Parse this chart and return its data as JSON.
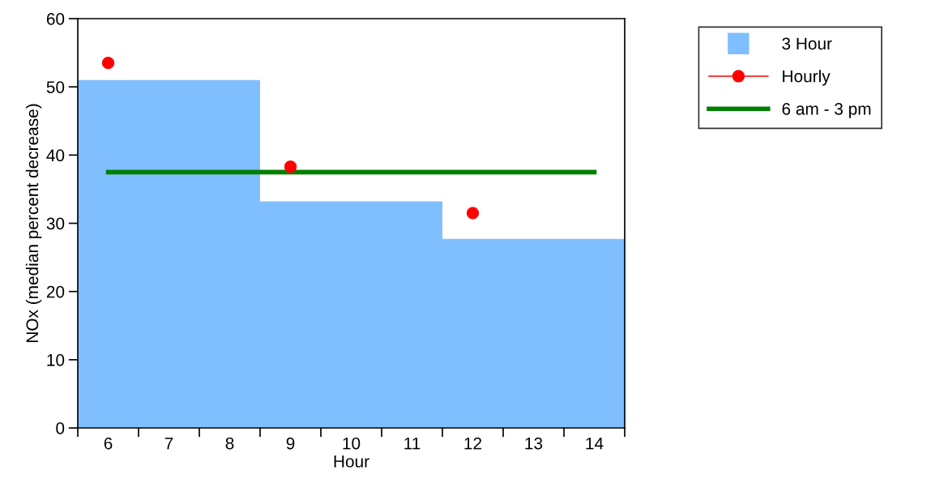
{
  "chart_data": {
    "type": "bar",
    "xlabel": "Hour",
    "ylabel": "NOx (median percent decrease)",
    "categories": [
      "6",
      "7",
      "8",
      "9",
      "10",
      "11",
      "12",
      "13",
      "14"
    ],
    "series": [
      {
        "name": "3 Hour",
        "color": "#80bfff",
        "values": [
          51,
          51,
          51,
          33.2,
          33.2,
          33.2,
          27.7,
          27.7,
          27.7
        ]
      },
      {
        "name": "Hourly",
        "type": "scatter",
        "color": "#ff0000",
        "marker": "circle",
        "values": [
          53.5,
          null,
          null,
          38.3,
          null,
          null,
          31.5,
          null,
          null
        ]
      },
      {
        "name": "6 am - 3 pm",
        "type": "line",
        "color": "#008000",
        "values": [
          37.5,
          37.5,
          37.5,
          37.5,
          37.5,
          37.5,
          37.5,
          37.5,
          37.5
        ]
      }
    ],
    "ylim": [
      0,
      60
    ],
    "yticks": [
      0,
      10,
      20,
      30,
      40,
      50,
      60
    ],
    "grid": false,
    "legend": "top right"
  }
}
